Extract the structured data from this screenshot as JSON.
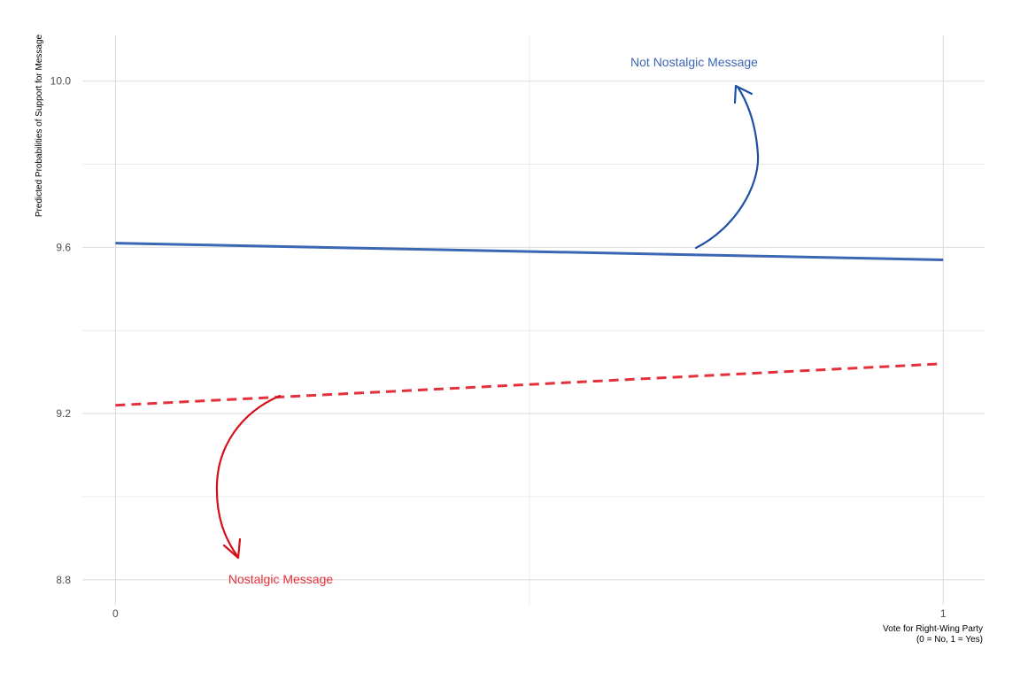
{
  "chart_data": {
    "type": "line",
    "xlabel_line1": "Vote for Right-Wing Party",
    "xlabel_line2": "(0 = No, 1 = Yes)",
    "ylabel": "Predicted Probabilities of Support for Message",
    "x": [
      0,
      1
    ],
    "x_tick_labels": [
      "0",
      "1"
    ],
    "xlim": [
      -0.04,
      1.05
    ],
    "ylim": [
      8.74,
      10.11
    ],
    "y_ticks": [
      8.8,
      9.2,
      9.6,
      10.0
    ],
    "y_tick_labels": [
      "8.8",
      "9.2",
      "9.6",
      "10.0"
    ],
    "y_minor_ticks": [
      9.0,
      9.4,
      9.8
    ],
    "x_minor_ticks": [
      0.5
    ],
    "grid": true,
    "series": [
      {
        "name": "Not Nostalgic Message",
        "values": [
          9.61,
          9.57
        ],
        "color": "#3a66b4",
        "line_style": "solid"
      },
      {
        "name": "Nostalgic Message",
        "values": [
          9.22,
          9.32
        ],
        "color": "#e4303a",
        "line_style": "dashed"
      }
    ],
    "annotations": [
      {
        "text": "Not Nostalgic Message",
        "color": "#3a66b4",
        "arrow_color": "#1f4fa5",
        "arrow_direction": "up"
      },
      {
        "text": "Nostalgic Message",
        "color": "#e4303a",
        "arrow_color": "#d4101b",
        "arrow_direction": "down"
      }
    ]
  }
}
